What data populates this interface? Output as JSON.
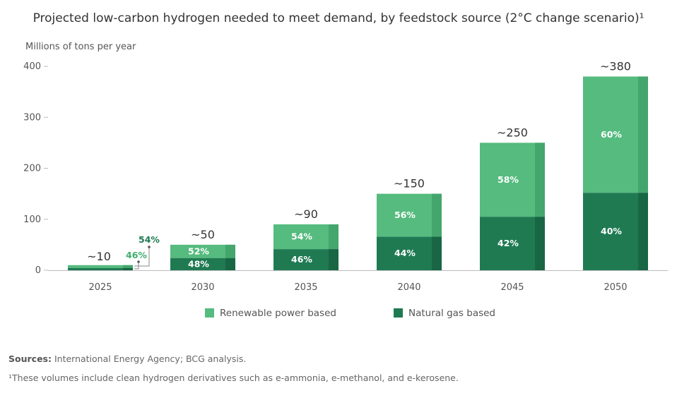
{
  "title": "Projected low-carbon hydrogen needed to meet demand, by feedstock source (2°C change scenario)¹",
  "colors": {
    "renewable": "#55bb7e",
    "renewable_shade": "#44a66c",
    "natural_gas": "#1f7a52",
    "natural_gas_shade": "#196645",
    "axis": "#bbbbbb"
  },
  "chart_data": {
    "type": "bar",
    "stacked": true,
    "title": "Projected low-carbon hydrogen needed to meet demand, by feedstock source (2°C change scenario)¹",
    "ylabel": "Millions of tons per year",
    "xlabel": "",
    "ylim": [
      0,
      400
    ],
    "yticks": [
      0,
      100,
      200,
      300,
      400
    ],
    "categories": [
      "2025",
      "2030",
      "2035",
      "2040",
      "2045",
      "2050"
    ],
    "totals": [
      10,
      50,
      90,
      150,
      250,
      380
    ],
    "total_labels": [
      "~10",
      "~50",
      "~90",
      "~150",
      "~250",
      "~380"
    ],
    "series": [
      {
        "name": "Natural gas based",
        "shares": [
          46,
          48,
          46,
          44,
          42,
          40
        ],
        "labels": [
          "46%",
          "48%",
          "46%",
          "44%",
          "42%",
          "40%"
        ]
      },
      {
        "name": "Renewable power based",
        "shares": [
          54,
          52,
          54,
          56,
          58,
          60
        ],
        "labels": [
          "54%",
          "52%",
          "54%",
          "56%",
          "58%",
          "60%"
        ]
      }
    ],
    "legend": [
      "Renewable power based",
      "Natural gas based"
    ],
    "legend_position": "bottom",
    "grid": false
  },
  "footnotes": {
    "sources_label": "Sources:",
    "sources_text": " International Energy Agency; BCG analysis.",
    "note": "¹These volumes include clean hydrogen derivatives such as e-ammonia, e-methanol, and e-kerosene."
  }
}
